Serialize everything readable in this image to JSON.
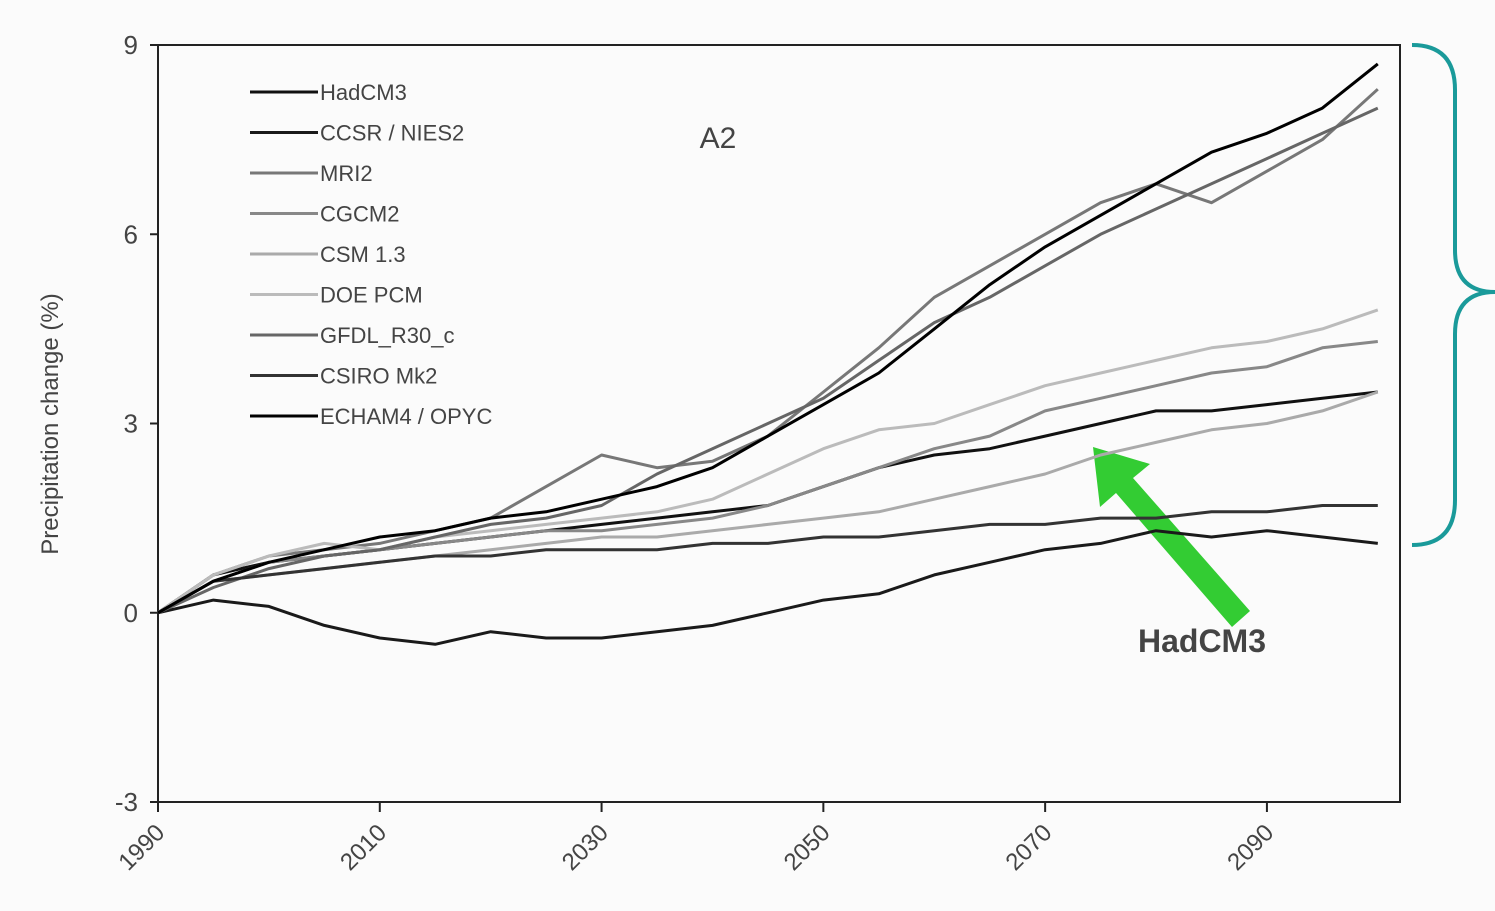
{
  "chart_data": {
    "type": "line",
    "y_label": "Precipitation change (%)",
    "panel_label": "A2",
    "annotation": "HadCM3",
    "x": [
      1990,
      1995,
      2000,
      2005,
      2010,
      2015,
      2020,
      2025,
      2030,
      2035,
      2040,
      2045,
      2050,
      2055,
      2060,
      2065,
      2070,
      2075,
      2080,
      2085,
      2090,
      2095,
      2100
    ],
    "xlim": [
      1990,
      2102
    ],
    "xticks": [
      1990,
      2010,
      2030,
      2050,
      2070,
      2090
    ],
    "ylim": [
      -3,
      9
    ],
    "yticks": [
      -3,
      0,
      3,
      6,
      9
    ],
    "series": [
      {
        "name": "HadCM3",
        "color": "#111111",
        "values": [
          0,
          0.6,
          0.8,
          0.9,
          1.0,
          1.1,
          1.2,
          1.3,
          1.4,
          1.5,
          1.6,
          1.7,
          2.0,
          2.3,
          2.5,
          2.6,
          2.8,
          3.0,
          3.2,
          3.2,
          3.3,
          3.4,
          3.5
        ]
      },
      {
        "name": "CCSR / NIES2",
        "color": "#1a1a1a",
        "values": [
          0,
          0.2,
          0.1,
          -0.2,
          -0.4,
          -0.5,
          -0.3,
          -0.4,
          -0.4,
          -0.3,
          -0.2,
          0,
          0.2,
          0.3,
          0.6,
          0.8,
          1.0,
          1.1,
          1.3,
          1.2,
          1.3,
          1.2,
          1.1
        ]
      },
      {
        "name": "MRI2",
        "color": "#777777",
        "values": [
          0,
          0.6,
          0.9,
          1.0,
          1.1,
          1.3,
          1.5,
          2.0,
          2.5,
          2.3,
          2.4,
          2.8,
          3.5,
          4.2,
          5.0,
          5.5,
          6.0,
          6.5,
          6.8,
          6.5,
          7.0,
          7.5,
          8.3
        ]
      },
      {
        "name": "CGCM2",
        "color": "#888888",
        "values": [
          0,
          0.5,
          0.8,
          0.9,
          1.0,
          1.1,
          1.2,
          1.3,
          1.3,
          1.4,
          1.5,
          1.7,
          2.0,
          2.3,
          2.6,
          2.8,
          3.2,
          3.4,
          3.6,
          3.8,
          3.9,
          4.2,
          4.3
        ]
      },
      {
        "name": "CSM 1.3",
        "color": "#aaaaaa",
        "values": [
          0,
          0.5,
          0.6,
          0.7,
          0.8,
          0.9,
          1.0,
          1.1,
          1.2,
          1.2,
          1.3,
          1.4,
          1.5,
          1.6,
          1.8,
          2.0,
          2.2,
          2.5,
          2.7,
          2.9,
          3.0,
          3.2,
          3.5
        ]
      },
      {
        "name": "DOE PCM",
        "color": "#bbbbbb",
        "values": [
          0,
          0.6,
          0.9,
          1.1,
          1.0,
          1.2,
          1.3,
          1.4,
          1.5,
          1.6,
          1.8,
          2.2,
          2.6,
          2.9,
          3.0,
          3.3,
          3.6,
          3.8,
          4.0,
          4.2,
          4.3,
          4.5,
          4.8
        ]
      },
      {
        "name": "GFDL_R30_c",
        "color": "#666666",
        "values": [
          0,
          0.4,
          0.7,
          0.9,
          1.0,
          1.2,
          1.4,
          1.5,
          1.7,
          2.2,
          2.6,
          3.0,
          3.4,
          4.0,
          4.6,
          5.0,
          5.5,
          6.0,
          6.4,
          6.8,
          7.2,
          7.6,
          8.0
        ]
      },
      {
        "name": "CSIRO Mk2",
        "color": "#333333",
        "values": [
          0,
          0.5,
          0.6,
          0.7,
          0.8,
          0.9,
          0.9,
          1.0,
          1.0,
          1.0,
          1.1,
          1.1,
          1.2,
          1.2,
          1.3,
          1.4,
          1.4,
          1.5,
          1.5,
          1.6,
          1.6,
          1.7,
          1.7
        ]
      },
      {
        "name": "ECHAM4 / OPYC",
        "color": "#000000",
        "values": [
          0,
          0.5,
          0.8,
          1.0,
          1.2,
          1.3,
          1.5,
          1.6,
          1.8,
          2.0,
          2.3,
          2.8,
          3.3,
          3.8,
          4.5,
          5.2,
          5.8,
          6.3,
          6.8,
          7.3,
          7.6,
          8.0,
          8.7
        ]
      }
    ]
  }
}
